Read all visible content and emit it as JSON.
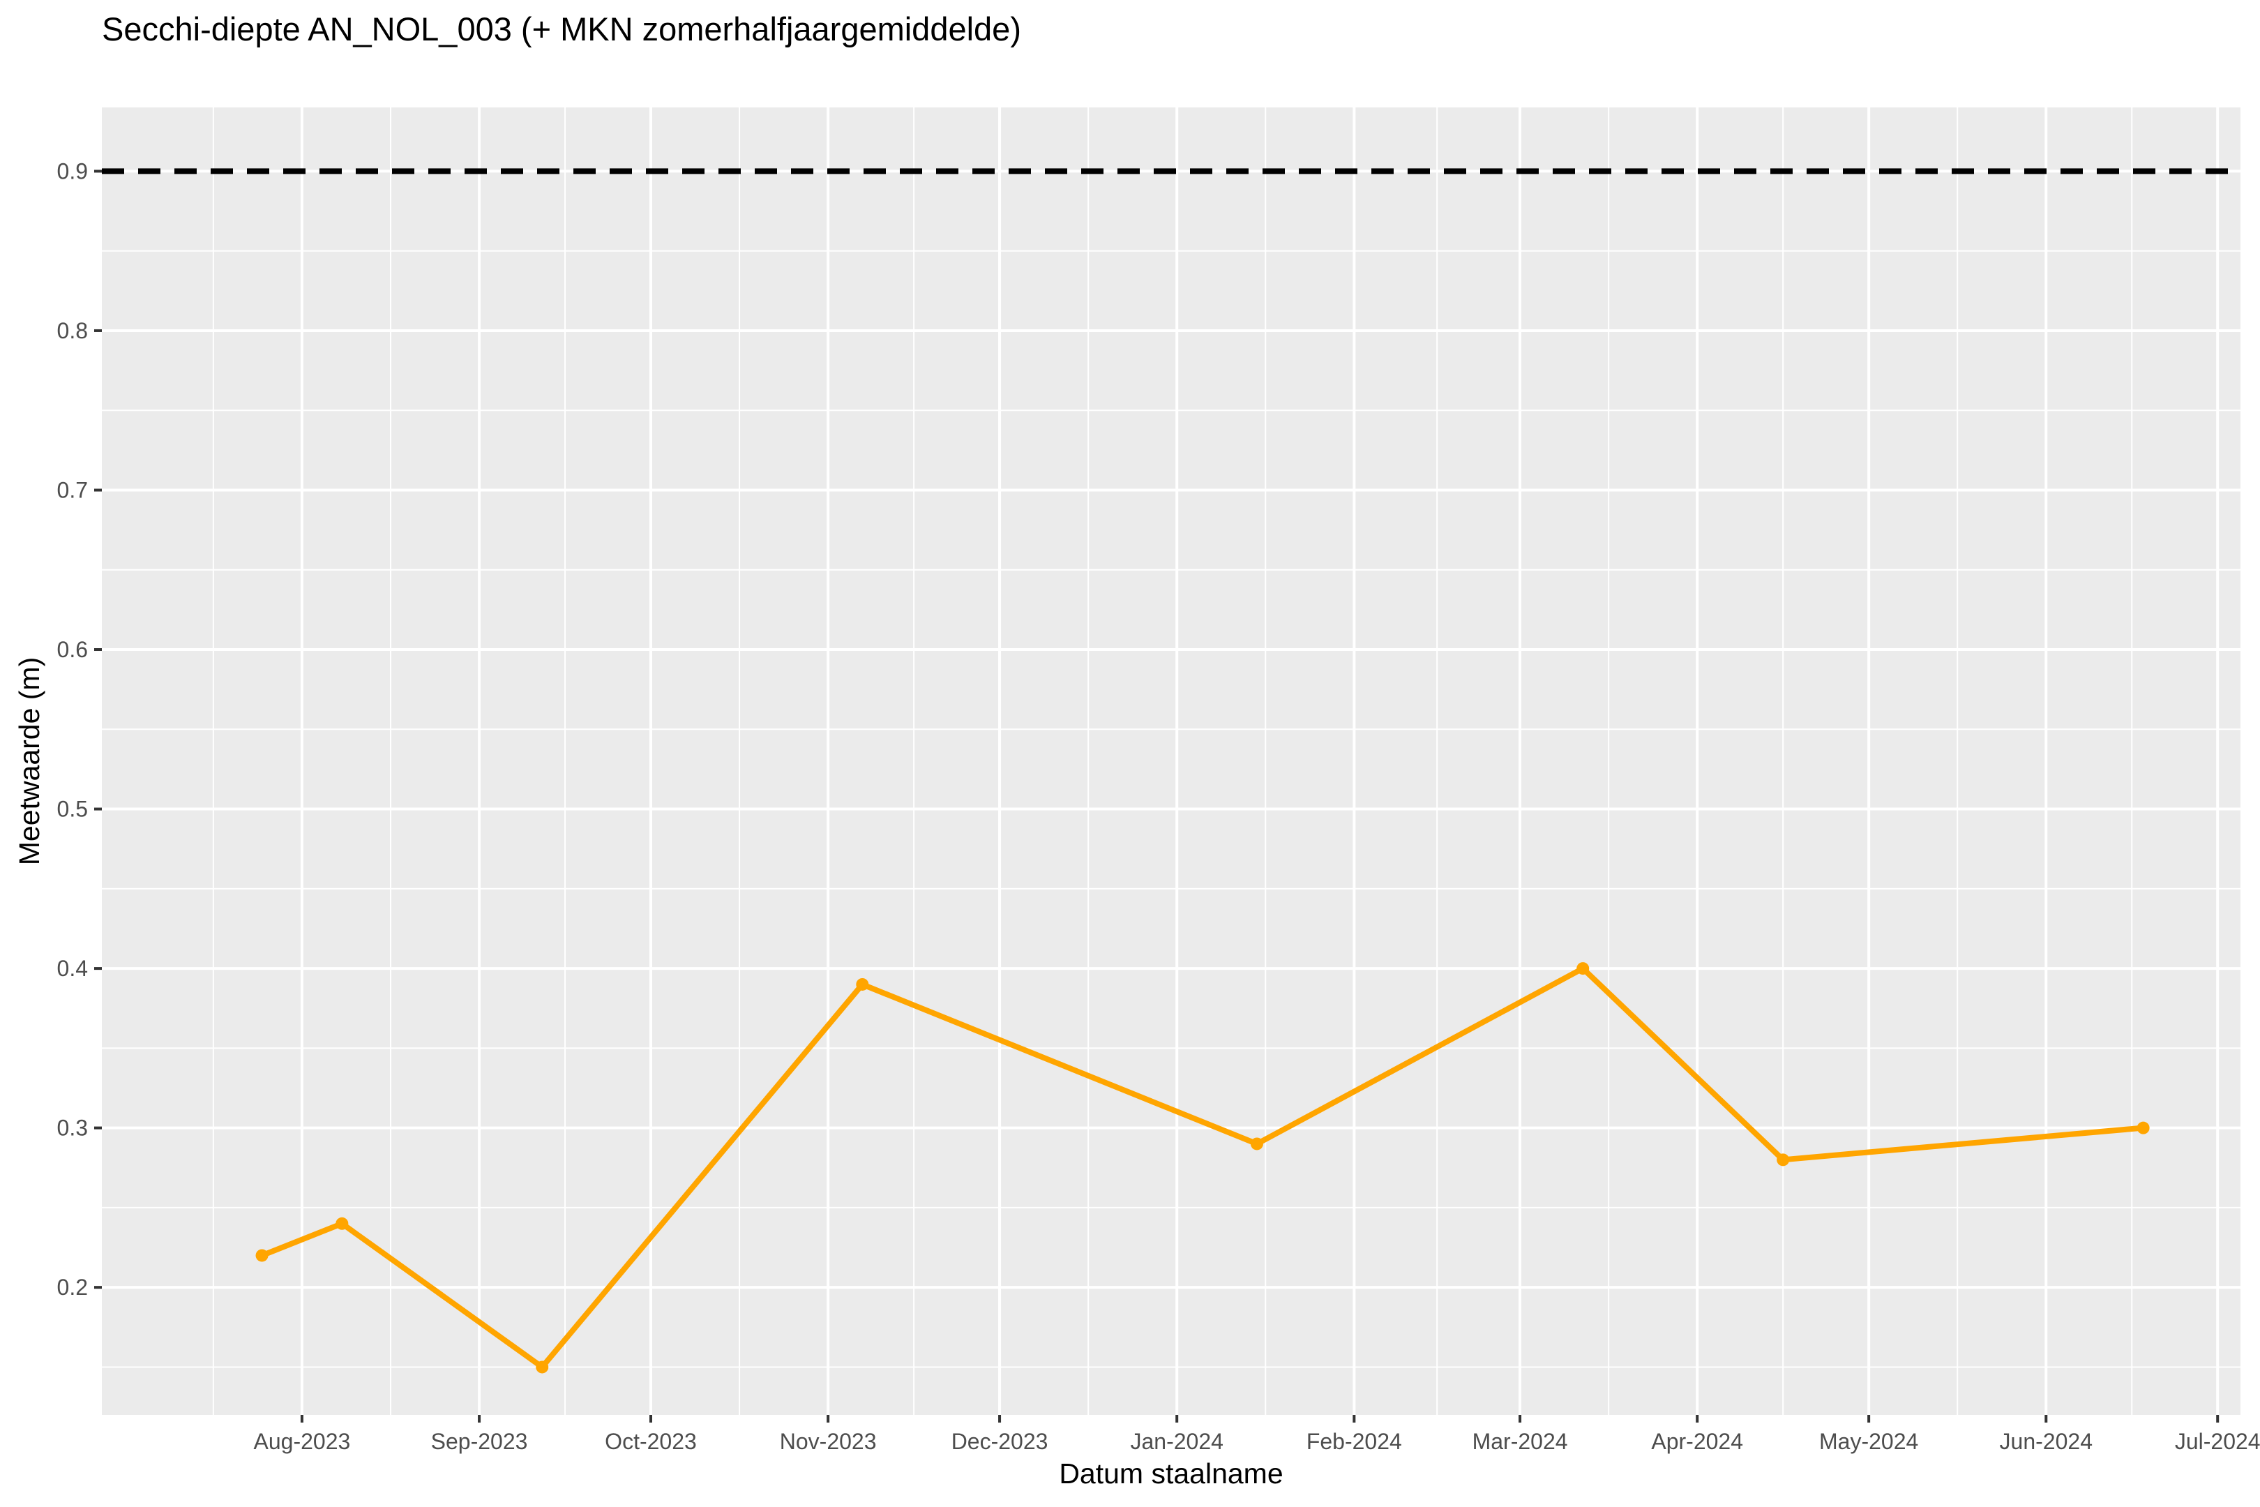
{
  "chart_data": {
    "type": "line",
    "title": "Secchi-diepte AN_NOL_003 (+ MKN  zomerhalfjaargemiddelde)",
    "xlabel": "Datum staalname",
    "ylabel": "Meetwaarde (m)",
    "xlim": [
      "2023-06-27",
      "2024-07-05"
    ],
    "ylim": [
      0.12,
      0.94
    ],
    "x_ticks": [
      {
        "date": "2023-08-01",
        "label": "Aug-2023"
      },
      {
        "date": "2023-09-01",
        "label": "Sep-2023"
      },
      {
        "date": "2023-10-01",
        "label": "Oct-2023"
      },
      {
        "date": "2023-11-01",
        "label": "Nov-2023"
      },
      {
        "date": "2023-12-01",
        "label": "Dec-2023"
      },
      {
        "date": "2024-01-01",
        "label": "Jan-2024"
      },
      {
        "date": "2024-02-01",
        "label": "Feb-2024"
      },
      {
        "date": "2024-03-01",
        "label": "Mar-2024"
      },
      {
        "date": "2024-04-01",
        "label": "Apr-2024"
      },
      {
        "date": "2024-05-01",
        "label": "May-2024"
      },
      {
        "date": "2024-06-01",
        "label": "Jun-2024"
      },
      {
        "date": "2024-07-01",
        "label": "Jul-2024"
      }
    ],
    "y_ticks": [
      0.2,
      0.3,
      0.4,
      0.5,
      0.6,
      0.7,
      0.8,
      0.9
    ],
    "y_tick_labels": [
      "0.2",
      "0.3",
      "0.4",
      "0.5",
      "0.6",
      "0.7",
      "0.8",
      "0.9"
    ],
    "series": [
      {
        "color": "#FFA500",
        "points": [
          {
            "x": "2023-07-25",
            "y": 0.22
          },
          {
            "x": "2023-08-08",
            "y": 0.24
          },
          {
            "x": "2023-09-12",
            "y": 0.15
          },
          {
            "x": "2023-11-07",
            "y": 0.39
          },
          {
            "x": "2024-01-15",
            "y": 0.29
          },
          {
            "x": "2024-03-12",
            "y": 0.4
          },
          {
            "x": "2024-04-16",
            "y": 0.28
          },
          {
            "x": "2024-06-18",
            "y": 0.3
          }
        ]
      }
    ],
    "reference_line": {
      "y": 0.9,
      "color": "#000000",
      "style": "dashed"
    },
    "grid": true,
    "legend": "none",
    "panel_background": "#EBEBEB",
    "grid_color": "#FFFFFF"
  }
}
